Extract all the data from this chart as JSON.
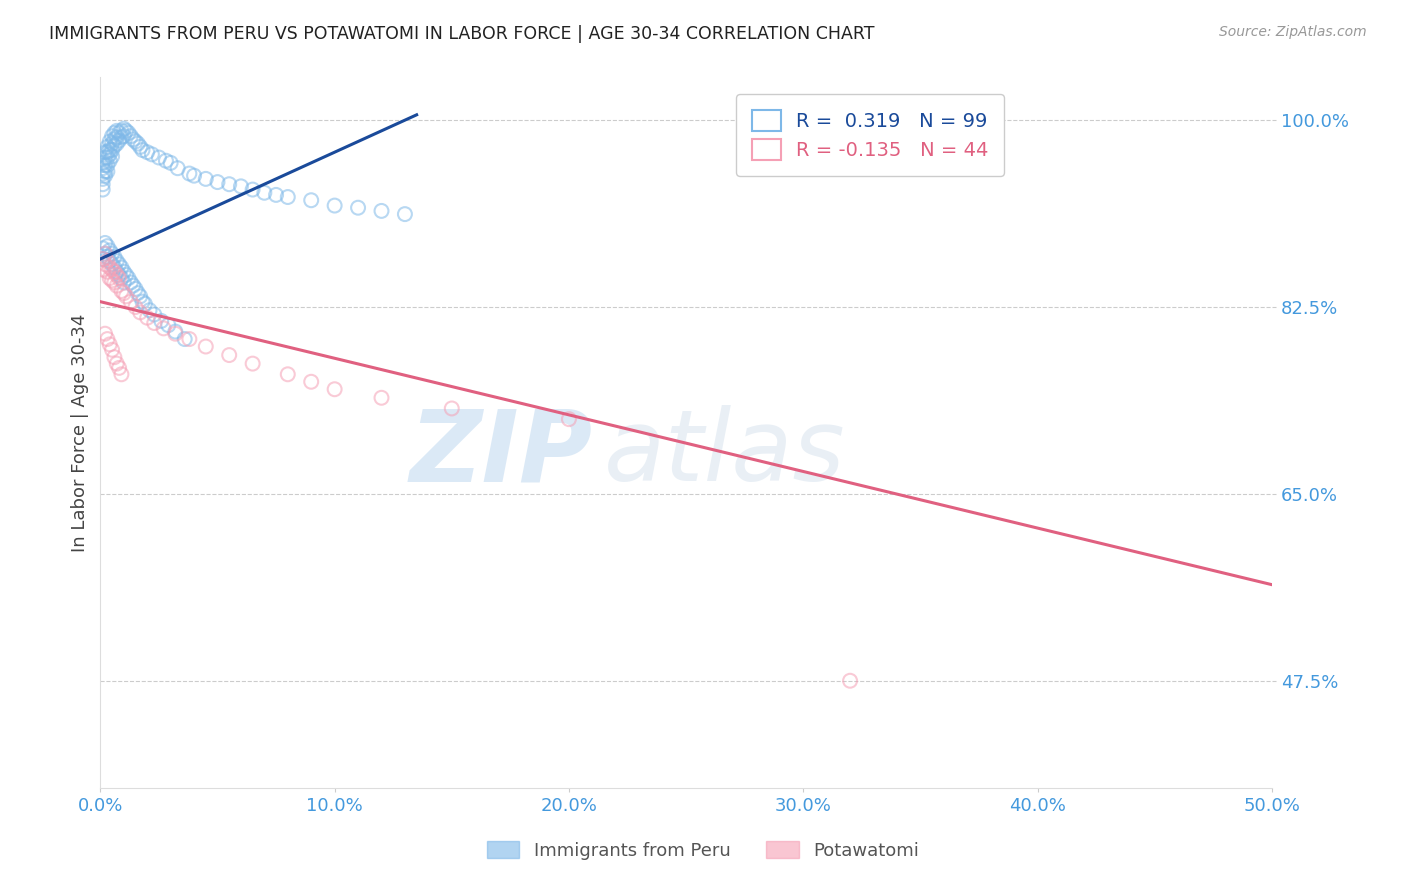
{
  "title": "IMMIGRANTS FROM PERU VS POTAWATOMI IN LABOR FORCE | AGE 30-34 CORRELATION CHART",
  "source": "Source: ZipAtlas.com",
  "ylabel": "In Labor Force | Age 30-34",
  "xlim": [
    0.0,
    0.5
  ],
  "ylim": [
    0.375,
    1.04
  ],
  "yticks": [
    0.475,
    0.65,
    0.825,
    1.0
  ],
  "ytick_labels": [
    "47.5%",
    "65.0%",
    "82.5%",
    "100.0%"
  ],
  "xticks": [
    0.0,
    0.1,
    0.2,
    0.3,
    0.4,
    0.5
  ],
  "xtick_labels": [
    "0.0%",
    "10.0%",
    "20.0%",
    "30.0%",
    "40.0%",
    "50.0%"
  ],
  "blue_color": "#7EB8E8",
  "pink_color": "#F5A0B5",
  "blue_line_color": "#1A4A9A",
  "pink_line_color": "#E06080",
  "tick_color": "#4499DD",
  "background_color": "#FFFFFF",
  "grid_color": "#CCCCCC",
  "blue_trendline_x": [
    0.0,
    0.135
  ],
  "blue_trendline_y": [
    0.87,
    1.005
  ],
  "pink_trendline_x": [
    0.0,
    0.5
  ],
  "pink_trendline_y": [
    0.83,
    0.565
  ],
  "watermark_zip": "ZIP",
  "watermark_atlas": "atlas",
  "marker_size": 100,
  "marker_alpha": 0.55,
  "marker_linewidth": 1.5,
  "peru_x": [
    0.001,
    0.001,
    0.001,
    0.001,
    0.001,
    0.001,
    0.002,
    0.002,
    0.002,
    0.002,
    0.002,
    0.003,
    0.003,
    0.003,
    0.003,
    0.003,
    0.004,
    0.004,
    0.004,
    0.004,
    0.005,
    0.005,
    0.005,
    0.005,
    0.006,
    0.006,
    0.006,
    0.007,
    0.007,
    0.007,
    0.008,
    0.008,
    0.009,
    0.009,
    0.01,
    0.01,
    0.011,
    0.012,
    0.013,
    0.014,
    0.015,
    0.016,
    0.017,
    0.018,
    0.02,
    0.022,
    0.025,
    0.028,
    0.03,
    0.033,
    0.038,
    0.04,
    0.045,
    0.05,
    0.055,
    0.06,
    0.065,
    0.07,
    0.075,
    0.08,
    0.09,
    0.1,
    0.11,
    0.12,
    0.13,
    0.001,
    0.001,
    0.002,
    0.002,
    0.003,
    0.003,
    0.004,
    0.004,
    0.005,
    0.005,
    0.006,
    0.006,
    0.007,
    0.007,
    0.008,
    0.008,
    0.009,
    0.009,
    0.01,
    0.01,
    0.011,
    0.012,
    0.013,
    0.014,
    0.015,
    0.016,
    0.017,
    0.018,
    0.019,
    0.021,
    0.023,
    0.026,
    0.029,
    0.032,
    0.036
  ],
  "peru_y": [
    0.96,
    0.955,
    0.95,
    0.945,
    0.94,
    0.935,
    0.97,
    0.965,
    0.958,
    0.952,
    0.948,
    0.975,
    0.97,
    0.965,
    0.958,
    0.952,
    0.98,
    0.972,
    0.968,
    0.962,
    0.985,
    0.978,
    0.972,
    0.966,
    0.988,
    0.982,
    0.976,
    0.99,
    0.984,
    0.978,
    0.988,
    0.981,
    0.99,
    0.984,
    0.992,
    0.985,
    0.99,
    0.988,
    0.985,
    0.982,
    0.98,
    0.978,
    0.975,
    0.972,
    0.97,
    0.968,
    0.965,
    0.962,
    0.96,
    0.955,
    0.95,
    0.948,
    0.945,
    0.942,
    0.94,
    0.938,
    0.935,
    0.932,
    0.93,
    0.928,
    0.925,
    0.92,
    0.918,
    0.915,
    0.912,
    0.88,
    0.87,
    0.885,
    0.875,
    0.882,
    0.872,
    0.878,
    0.868,
    0.875,
    0.865,
    0.872,
    0.862,
    0.868,
    0.858,
    0.865,
    0.855,
    0.862,
    0.852,
    0.858,
    0.848,
    0.855,
    0.852,
    0.848,
    0.845,
    0.842,
    0.838,
    0.835,
    0.83,
    0.828,
    0.822,
    0.818,
    0.812,
    0.808,
    0.802,
    0.795
  ],
  "potawatomi_x": [
    0.001,
    0.001,
    0.002,
    0.002,
    0.003,
    0.003,
    0.004,
    0.004,
    0.005,
    0.005,
    0.006,
    0.006,
    0.007,
    0.007,
    0.008,
    0.009,
    0.01,
    0.011,
    0.013,
    0.015,
    0.017,
    0.02,
    0.023,
    0.027,
    0.032,
    0.038,
    0.045,
    0.055,
    0.065,
    0.08,
    0.09,
    0.1,
    0.12,
    0.15,
    0.2,
    0.002,
    0.003,
    0.004,
    0.005,
    0.006,
    0.007,
    0.008,
    0.009,
    0.32
  ],
  "potawatomi_y": [
    0.87,
    0.86,
    0.875,
    0.865,
    0.868,
    0.858,
    0.862,
    0.852,
    0.86,
    0.85,
    0.858,
    0.848,
    0.855,
    0.845,
    0.852,
    0.84,
    0.838,
    0.835,
    0.83,
    0.825,
    0.82,
    0.815,
    0.81,
    0.805,
    0.8,
    0.795,
    0.788,
    0.78,
    0.772,
    0.762,
    0.755,
    0.748,
    0.74,
    0.73,
    0.72,
    0.8,
    0.795,
    0.79,
    0.785,
    0.778,
    0.772,
    0.768,
    0.762,
    0.475
  ]
}
